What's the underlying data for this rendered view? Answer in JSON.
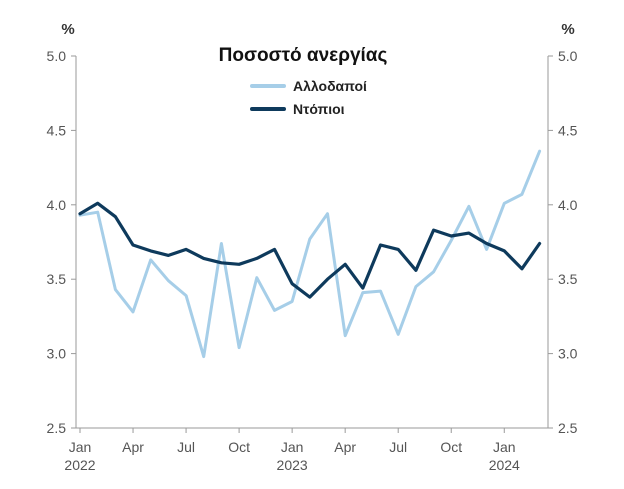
{
  "chart_data": {
    "type": "line",
    "title": "Ποσοστό ανεργίας",
    "unit_left": "%",
    "unit_right": "%",
    "ylim": [
      2.5,
      5.0
    ],
    "yticks": [
      "2.5",
      "3.0",
      "3.5",
      "4.0",
      "4.5",
      "5.0"
    ],
    "grid": false,
    "legend_position": "top-center",
    "x": [
      "2022-01",
      "2022-02",
      "2022-03",
      "2022-04",
      "2022-05",
      "2022-06",
      "2022-07",
      "2022-08",
      "2022-09",
      "2022-10",
      "2022-11",
      "2022-12",
      "2023-01",
      "2023-02",
      "2023-03",
      "2023-04",
      "2023-05",
      "2023-06",
      "2023-07",
      "2023-08",
      "2023-09",
      "2023-10",
      "2023-11",
      "2023-12",
      "2024-01",
      "2024-02",
      "2024-03"
    ],
    "xtick_labels": [
      {
        "label": "Jan",
        "year": "2022"
      },
      {
        "label": "Apr",
        "year": ""
      },
      {
        "label": "Jul",
        "year": ""
      },
      {
        "label": "Oct",
        "year": ""
      },
      {
        "label": "Jan",
        "year": "2023"
      },
      {
        "label": "Apr",
        "year": ""
      },
      {
        "label": "Jul",
        "year": ""
      },
      {
        "label": "Oct",
        "year": ""
      },
      {
        "label": "Jan",
        "year": "2024"
      }
    ],
    "series": [
      {
        "name": "Αλλοδαποί",
        "color": "#a6cee8",
        "values": [
          3.93,
          3.95,
          3.43,
          3.28,
          3.63,
          3.49,
          3.39,
          2.98,
          3.74,
          3.04,
          3.51,
          3.29,
          3.35,
          3.77,
          3.94,
          3.12,
          3.41,
          3.42,
          3.13,
          3.45,
          3.55,
          3.76,
          3.99,
          3.7,
          4.01,
          4.07,
          4.36
        ]
      },
      {
        "name": "Ντόπιοι",
        "color": "#0e3a5c",
        "values": [
          3.94,
          4.01,
          3.92,
          3.73,
          3.69,
          3.66,
          3.7,
          3.64,
          3.61,
          3.6,
          3.64,
          3.7,
          3.47,
          3.38,
          3.5,
          3.6,
          3.44,
          3.73,
          3.7,
          3.56,
          3.83,
          3.79,
          3.81,
          3.74,
          3.69,
          3.57,
          3.74
        ]
      }
    ]
  }
}
